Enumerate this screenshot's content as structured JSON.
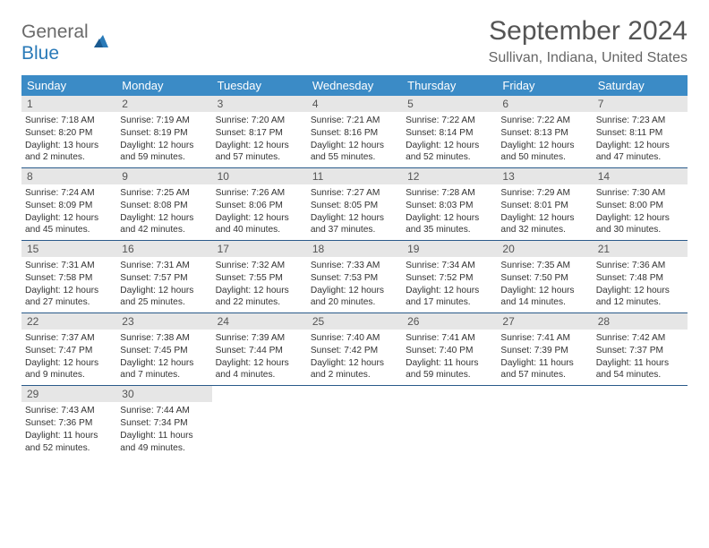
{
  "logo": {
    "part1": "General",
    "part2": "Blue"
  },
  "title": "September 2024",
  "location": "Sullivan, Indiana, United States",
  "day_headers": [
    "Sunday",
    "Monday",
    "Tuesday",
    "Wednesday",
    "Thursday",
    "Friday",
    "Saturday"
  ],
  "colors": {
    "header_bg": "#3b8bc6",
    "header_text": "#ffffff",
    "daynum_bg": "#e6e6e6",
    "row_border": "#2a5a8a",
    "logo_blue": "#2a7ab8",
    "logo_gray": "#6a6a6a"
  },
  "weeks": [
    [
      {
        "num": "1",
        "sunrise": "Sunrise: 7:18 AM",
        "sunset": "Sunset: 8:20 PM",
        "daylight": "Daylight: 13 hours and 2 minutes."
      },
      {
        "num": "2",
        "sunrise": "Sunrise: 7:19 AM",
        "sunset": "Sunset: 8:19 PM",
        "daylight": "Daylight: 12 hours and 59 minutes."
      },
      {
        "num": "3",
        "sunrise": "Sunrise: 7:20 AM",
        "sunset": "Sunset: 8:17 PM",
        "daylight": "Daylight: 12 hours and 57 minutes."
      },
      {
        "num": "4",
        "sunrise": "Sunrise: 7:21 AM",
        "sunset": "Sunset: 8:16 PM",
        "daylight": "Daylight: 12 hours and 55 minutes."
      },
      {
        "num": "5",
        "sunrise": "Sunrise: 7:22 AM",
        "sunset": "Sunset: 8:14 PM",
        "daylight": "Daylight: 12 hours and 52 minutes."
      },
      {
        "num": "6",
        "sunrise": "Sunrise: 7:22 AM",
        "sunset": "Sunset: 8:13 PM",
        "daylight": "Daylight: 12 hours and 50 minutes."
      },
      {
        "num": "7",
        "sunrise": "Sunrise: 7:23 AM",
        "sunset": "Sunset: 8:11 PM",
        "daylight": "Daylight: 12 hours and 47 minutes."
      }
    ],
    [
      {
        "num": "8",
        "sunrise": "Sunrise: 7:24 AM",
        "sunset": "Sunset: 8:09 PM",
        "daylight": "Daylight: 12 hours and 45 minutes."
      },
      {
        "num": "9",
        "sunrise": "Sunrise: 7:25 AM",
        "sunset": "Sunset: 8:08 PM",
        "daylight": "Daylight: 12 hours and 42 minutes."
      },
      {
        "num": "10",
        "sunrise": "Sunrise: 7:26 AM",
        "sunset": "Sunset: 8:06 PM",
        "daylight": "Daylight: 12 hours and 40 minutes."
      },
      {
        "num": "11",
        "sunrise": "Sunrise: 7:27 AM",
        "sunset": "Sunset: 8:05 PM",
        "daylight": "Daylight: 12 hours and 37 minutes."
      },
      {
        "num": "12",
        "sunrise": "Sunrise: 7:28 AM",
        "sunset": "Sunset: 8:03 PM",
        "daylight": "Daylight: 12 hours and 35 minutes."
      },
      {
        "num": "13",
        "sunrise": "Sunrise: 7:29 AM",
        "sunset": "Sunset: 8:01 PM",
        "daylight": "Daylight: 12 hours and 32 minutes."
      },
      {
        "num": "14",
        "sunrise": "Sunrise: 7:30 AM",
        "sunset": "Sunset: 8:00 PM",
        "daylight": "Daylight: 12 hours and 30 minutes."
      }
    ],
    [
      {
        "num": "15",
        "sunrise": "Sunrise: 7:31 AM",
        "sunset": "Sunset: 7:58 PM",
        "daylight": "Daylight: 12 hours and 27 minutes."
      },
      {
        "num": "16",
        "sunrise": "Sunrise: 7:31 AM",
        "sunset": "Sunset: 7:57 PM",
        "daylight": "Daylight: 12 hours and 25 minutes."
      },
      {
        "num": "17",
        "sunrise": "Sunrise: 7:32 AM",
        "sunset": "Sunset: 7:55 PM",
        "daylight": "Daylight: 12 hours and 22 minutes."
      },
      {
        "num": "18",
        "sunrise": "Sunrise: 7:33 AM",
        "sunset": "Sunset: 7:53 PM",
        "daylight": "Daylight: 12 hours and 20 minutes."
      },
      {
        "num": "19",
        "sunrise": "Sunrise: 7:34 AM",
        "sunset": "Sunset: 7:52 PM",
        "daylight": "Daylight: 12 hours and 17 minutes."
      },
      {
        "num": "20",
        "sunrise": "Sunrise: 7:35 AM",
        "sunset": "Sunset: 7:50 PM",
        "daylight": "Daylight: 12 hours and 14 minutes."
      },
      {
        "num": "21",
        "sunrise": "Sunrise: 7:36 AM",
        "sunset": "Sunset: 7:48 PM",
        "daylight": "Daylight: 12 hours and 12 minutes."
      }
    ],
    [
      {
        "num": "22",
        "sunrise": "Sunrise: 7:37 AM",
        "sunset": "Sunset: 7:47 PM",
        "daylight": "Daylight: 12 hours and 9 minutes."
      },
      {
        "num": "23",
        "sunrise": "Sunrise: 7:38 AM",
        "sunset": "Sunset: 7:45 PM",
        "daylight": "Daylight: 12 hours and 7 minutes."
      },
      {
        "num": "24",
        "sunrise": "Sunrise: 7:39 AM",
        "sunset": "Sunset: 7:44 PM",
        "daylight": "Daylight: 12 hours and 4 minutes."
      },
      {
        "num": "25",
        "sunrise": "Sunrise: 7:40 AM",
        "sunset": "Sunset: 7:42 PM",
        "daylight": "Daylight: 12 hours and 2 minutes."
      },
      {
        "num": "26",
        "sunrise": "Sunrise: 7:41 AM",
        "sunset": "Sunset: 7:40 PM",
        "daylight": "Daylight: 11 hours and 59 minutes."
      },
      {
        "num": "27",
        "sunrise": "Sunrise: 7:41 AM",
        "sunset": "Sunset: 7:39 PM",
        "daylight": "Daylight: 11 hours and 57 minutes."
      },
      {
        "num": "28",
        "sunrise": "Sunrise: 7:42 AM",
        "sunset": "Sunset: 7:37 PM",
        "daylight": "Daylight: 11 hours and 54 minutes."
      }
    ],
    [
      {
        "num": "29",
        "sunrise": "Sunrise: 7:43 AM",
        "sunset": "Sunset: 7:36 PM",
        "daylight": "Daylight: 11 hours and 52 minutes."
      },
      {
        "num": "30",
        "sunrise": "Sunrise: 7:44 AM",
        "sunset": "Sunset: 7:34 PM",
        "daylight": "Daylight: 11 hours and 49 minutes."
      },
      null,
      null,
      null,
      null,
      null
    ]
  ]
}
